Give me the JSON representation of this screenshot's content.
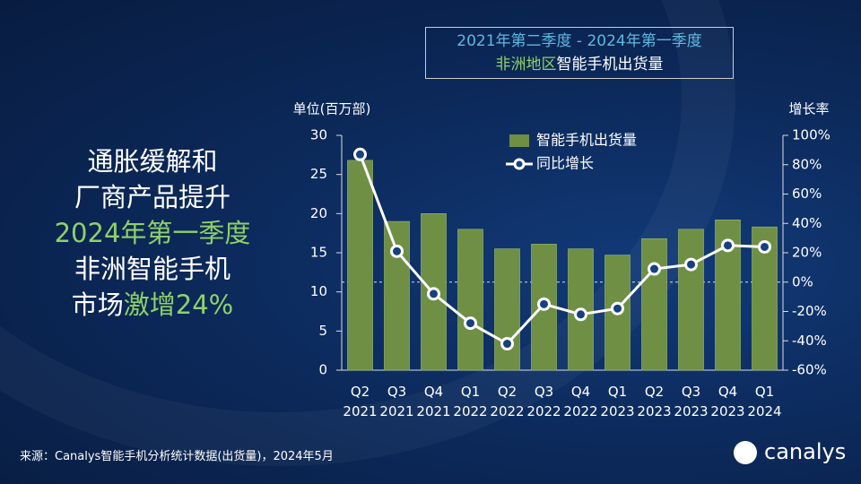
{
  "headline": [
    "通胀缓解和",
    "厂商产品提升",
    "2024年第一季度",
    "非洲智能手机",
    "市场",
    "激增24%"
  ],
  "source": "来源：Canalys智能手机分析统计数据(出货量)，2024年5月",
  "logo": "canalys",
  "chart_data": {
    "type": "bar",
    "title": [
      "2021年第二季度 - 2024年第一季度",
      "非洲地区",
      "智能手机出货量"
    ],
    "ylabel": "单位(百万部)",
    "y2label": "增长率",
    "categories": [
      "Q2 2021",
      "Q3 2021",
      "Q4 2021",
      "Q1 2022",
      "Q2 2022",
      "Q3 2022",
      "Q4 2022",
      "Q1 2023",
      "Q2 2023",
      "Q3 2023",
      "Q4 2023",
      "Q1 2024"
    ],
    "series": [
      {
        "name": "智能手机出货量",
        "type": "bar",
        "color": "#6f8f45",
        "values": [
          26.8,
          19.0,
          20.0,
          18.0,
          15.5,
          16.1,
          15.5,
          14.7,
          16.8,
          18.0,
          19.2,
          18.3
        ]
      },
      {
        "name": "同比增长",
        "type": "line",
        "axis": "y2",
        "color": "#ffffff",
        "values": [
          87,
          21,
          -8,
          -28,
          -42,
          -15,
          -22,
          -18,
          9,
          12,
          25,
          24
        ]
      }
    ],
    "ylim": [
      0,
      30
    ],
    "yticks": [
      0,
      5,
      10,
      15,
      20,
      25,
      30
    ],
    "y2lim": [
      -60,
      100
    ],
    "y2ticks": [
      {
        "value": -60,
        "label": "-60%"
      },
      {
        "value": -40,
        "label": "-40%"
      },
      {
        "value": -20,
        "label": "-20%"
      },
      {
        "value": 0,
        "label": "0%"
      },
      {
        "value": 20,
        "label": "20%"
      },
      {
        "value": 40,
        "label": "40%"
      },
      {
        "value": 60,
        "label": "60%"
      },
      {
        "value": 80,
        "label": "80%"
      },
      {
        "value": 100,
        "label": "100%"
      }
    ]
  }
}
